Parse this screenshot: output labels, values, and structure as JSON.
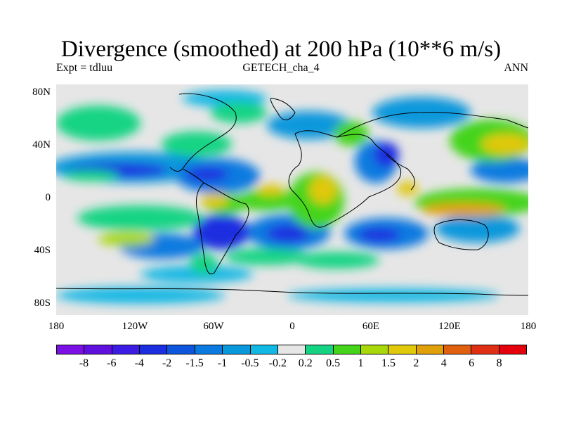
{
  "title": "Divergence (smoothed) at 200 hPa (10**6 m/s)",
  "left_subtitle": "Expt = tdluu",
  "center_subtitle": "GETECH_cha_4",
  "right_subtitle": "ANN",
  "map_projection": "cylindrical equidistant",
  "map_extent": {
    "lon": [
      -180,
      180
    ],
    "lat": [
      -90,
      90
    ]
  },
  "map_features": [
    "filled-contour-divergence",
    "coastlines"
  ],
  "y_axis_labels": [
    "80N",
    "40N",
    "0",
    "40S",
    "80S"
  ],
  "x_axis_labels": [
    "180",
    "120W",
    "60W",
    "0",
    "60E",
    "120E",
    "180"
  ],
  "legend": {
    "labels": [
      "-8",
      "-6",
      "-4",
      "-2",
      "-1.5",
      "-1",
      "-0.5",
      "-0.2",
      "0.2",
      "0.5",
      "1",
      "1.5",
      "2",
      "4",
      "6",
      "8"
    ],
    "colors": [
      "#7b10e4",
      "#6010de",
      "#3c1ce4",
      "#1a2ee0",
      "#0c55dc",
      "#0a7ae0",
      "#0898dc",
      "#12b8e4",
      "#e6e6e6",
      "#14d484",
      "#44d41a",
      "#a8d80a",
      "#e0c80a",
      "#e0a00a",
      "#e06010",
      "#e03014",
      "#e4000c"
    ]
  }
}
